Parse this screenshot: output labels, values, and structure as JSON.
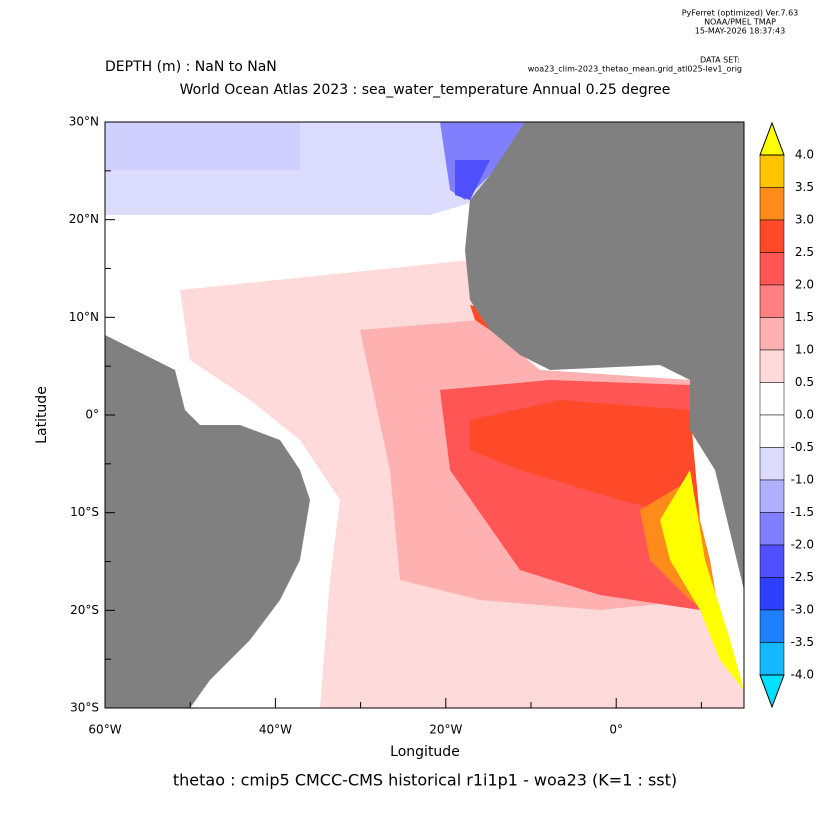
{
  "header": {
    "program": "PyFerret (optimized) Ver.7.63",
    "org": "NOAA/PMEL TMAP",
    "date": "15-MAY-2026 18:37:43",
    "dataset_label": "DATA SET:",
    "dataset": "woa23_clim-2023_thetao_mean.grid_atl025-lev1_orig"
  },
  "depth": "DEPTH (m) : NaN to NaN",
  "title": "World Ocean Atlas 2023 : sea_water_temperature Annual  0.25 degree",
  "map": {
    "xlabel": "Longitude",
    "ylabel": "Latitude",
    "xlim": [
      -60,
      15
    ],
    "ylim": [
      -30,
      30
    ],
    "xticks": [
      {
        "value": -60,
        "label": "60°W"
      },
      {
        "value": -40,
        "label": "40°W"
      },
      {
        "value": -20,
        "label": "20°W"
      },
      {
        "value": 0,
        "label": "0°"
      }
    ],
    "xminor": [
      -50,
      -30,
      -10,
      10
    ],
    "yticks": [
      {
        "value": 30,
        "label": "30°N"
      },
      {
        "value": 20,
        "label": "20°N"
      },
      {
        "value": 10,
        "label": "10°N"
      },
      {
        "value": 0,
        "label": "0°"
      },
      {
        "value": -10,
        "label": "10°S"
      },
      {
        "value": -20,
        "label": "20°S"
      },
      {
        "value": -30,
        "label": "30°S"
      }
    ],
    "yminor": [
      25,
      15,
      5,
      -5,
      -15,
      -25
    ]
  },
  "colorbar": {
    "levels": [
      {
        "value": 4,
        "label": "4.0"
      },
      {
        "value": 3.5,
        "label": "3.5"
      },
      {
        "value": 3,
        "label": "3.0"
      },
      {
        "value": 2.5,
        "label": "2.5"
      },
      {
        "value": 2,
        "label": "2.0"
      },
      {
        "value": 1.5,
        "label": "1.5"
      },
      {
        "value": 1,
        "label": "1.0"
      },
      {
        "value": 0.5,
        "label": "0.5"
      },
      {
        "value": 0,
        "label": "0.0"
      },
      {
        "value": -0.5,
        "label": "-0.5"
      },
      {
        "value": -1,
        "label": "-1.0"
      },
      {
        "value": -1.5,
        "label": "-1.5"
      },
      {
        "value": -2,
        "label": "-2.0"
      },
      {
        "value": -2.5,
        "label": "-2.5"
      },
      {
        "value": -3,
        "label": "-3.0"
      },
      {
        "value": -3.5,
        "label": "-3.5"
      },
      {
        "value": -4,
        "label": "-4.0"
      }
    ],
    "colors": [
      "#ffc400",
      "#ff8c1a",
      "#ff4a2a",
      "#ff5555",
      "#ff8080",
      "#ffb0b0",
      "#ffdada",
      "#ffffff",
      "#ffffff",
      "#dcdcff",
      "#b0b0ff",
      "#8080ff",
      "#5050ff",
      "#2e40ff",
      "#1e80ff",
      "#14b8ff"
    ],
    "over_color": "#ffff00",
    "under_color": "#00e0ff"
  },
  "footer": "thetao : cmip5 CMCC-CMS historical r1i1p1 - woa23  (K=1 : sst)"
}
